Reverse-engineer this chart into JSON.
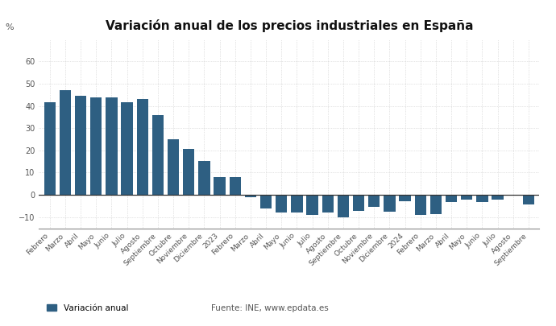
{
  "title": "Variación anual de los precios industriales en España",
  "ylabel_text": "%",
  "bar_color": "#2e5f82",
  "background_color": "#ffffff",
  "grid_color": "#c8c8c8",
  "categories": [
    "Febrero",
    "Marzo",
    "Abril",
    "Mayo",
    "Junio",
    "Julio",
    "Agosto",
    "Septiembre",
    "Octubre",
    "Noviembre",
    "Diciembre",
    "2023",
    "Febrero",
    "Marzo",
    "Abril",
    "Mayo",
    "Junio",
    "Julio",
    "Agosto",
    "Septiembre",
    "Octubre",
    "Noviembre",
    "Diciembre",
    "2024",
    "Febrero",
    "Marzo",
    "Abril",
    "Mayo",
    "Junio",
    "Julio",
    "Agosto",
    "Septiembre"
  ],
  "values": [
    41.5,
    47.0,
    44.7,
    43.7,
    43.7,
    41.7,
    43.2,
    36.0,
    25.1,
    20.6,
    15.1,
    7.9,
    8.1,
    -1.2,
    -6.0,
    -7.9,
    -8.1,
    -9.2,
    -7.8,
    -10.1,
    -7.4,
    -5.5,
    -7.7,
    -3.0,
    -8.9,
    -8.7,
    -3.1,
    -2.2,
    -3.3,
    -2.2,
    -0.5,
    -4.5
  ],
  "legend_label": "Variación anual",
  "source_text": "Fuente: INE, www.epdata.es",
  "ylim_min": -15,
  "ylim_max": 70,
  "yticks": [
    -10,
    0,
    10,
    20,
    30,
    40,
    50,
    60
  ],
  "title_fontsize": 11,
  "tick_labelsize": 7,
  "xlabel_fontsize": 6.5
}
